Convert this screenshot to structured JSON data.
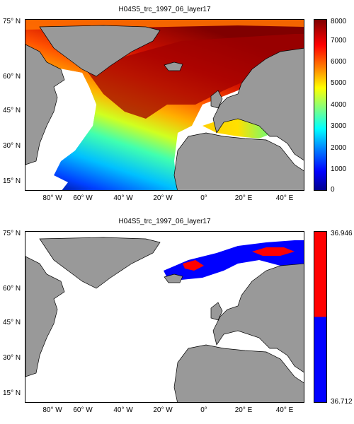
{
  "panels": [
    {
      "title": "H04S5_trc_1997_06_layer17",
      "y_ticks": [
        "75° N",
        "60° N",
        "45° N",
        "30° N",
        "15° N"
      ],
      "x_ticks": [
        "80° W",
        "60° W",
        "40° W",
        "20° W",
        "0°",
        "20° E",
        "40° E"
      ],
      "colorbar_ticks": [
        "8000",
        "7000",
        "6000",
        "5000",
        "4000",
        "3000",
        "2000",
        "1000",
        "0"
      ],
      "colormap": "jet"
    },
    {
      "title": "H04S5_trc_1997_06_layer17",
      "y_ticks": [
        "75° N",
        "60° N",
        "45° N",
        "30° N",
        "15° N"
      ],
      "x_ticks": [
        "80° W",
        "60° W",
        "40° W",
        "20° W",
        "0°",
        "20° E",
        "40° E"
      ],
      "colorbar_ticks": [
        "36.946",
        "36.712"
      ],
      "colormap": "binary red/blue"
    }
  ],
  "colors": {
    "land": "#999999",
    "ocean_nodata": "#ffffff",
    "high": "#ff0000",
    "low": "#0000ff"
  }
}
